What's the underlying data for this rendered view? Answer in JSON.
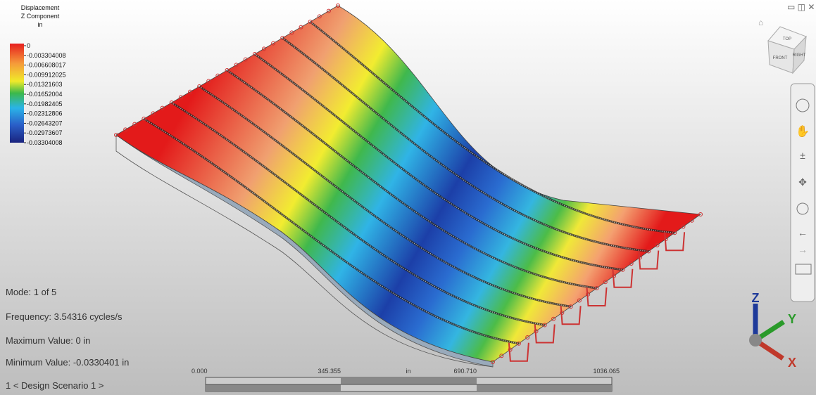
{
  "legend": {
    "title": [
      "Displacement",
      "Z Component",
      "in"
    ],
    "values": [
      "0",
      "-0.003304008",
      "-0.006608017",
      "-0.009912025",
      "-0.01321603",
      "-0.01652004",
      "-0.01982405",
      "-0.02312806",
      "-0.02643207",
      "-0.02973607",
      "-0.03304008"
    ]
  },
  "info": {
    "mode": "Mode: 1 of 5",
    "frequency": "Frequency: 3.54316 cycles/s",
    "max": "Maximum Value: 0 in",
    "min": "Minimum Value: -0.0330401 in",
    "scenario": "1 < Design Scenario 1 >"
  },
  "scale_bar": {
    "labels": [
      "0.000",
      "345.355",
      "690.710",
      "1036.065"
    ],
    "unit": "in"
  },
  "view_cube": {
    "top": "TOP",
    "front": "FRONT",
    "right": "RIGHT"
  },
  "triad": {
    "z": "Z",
    "y": "Y",
    "x": "X"
  }
}
